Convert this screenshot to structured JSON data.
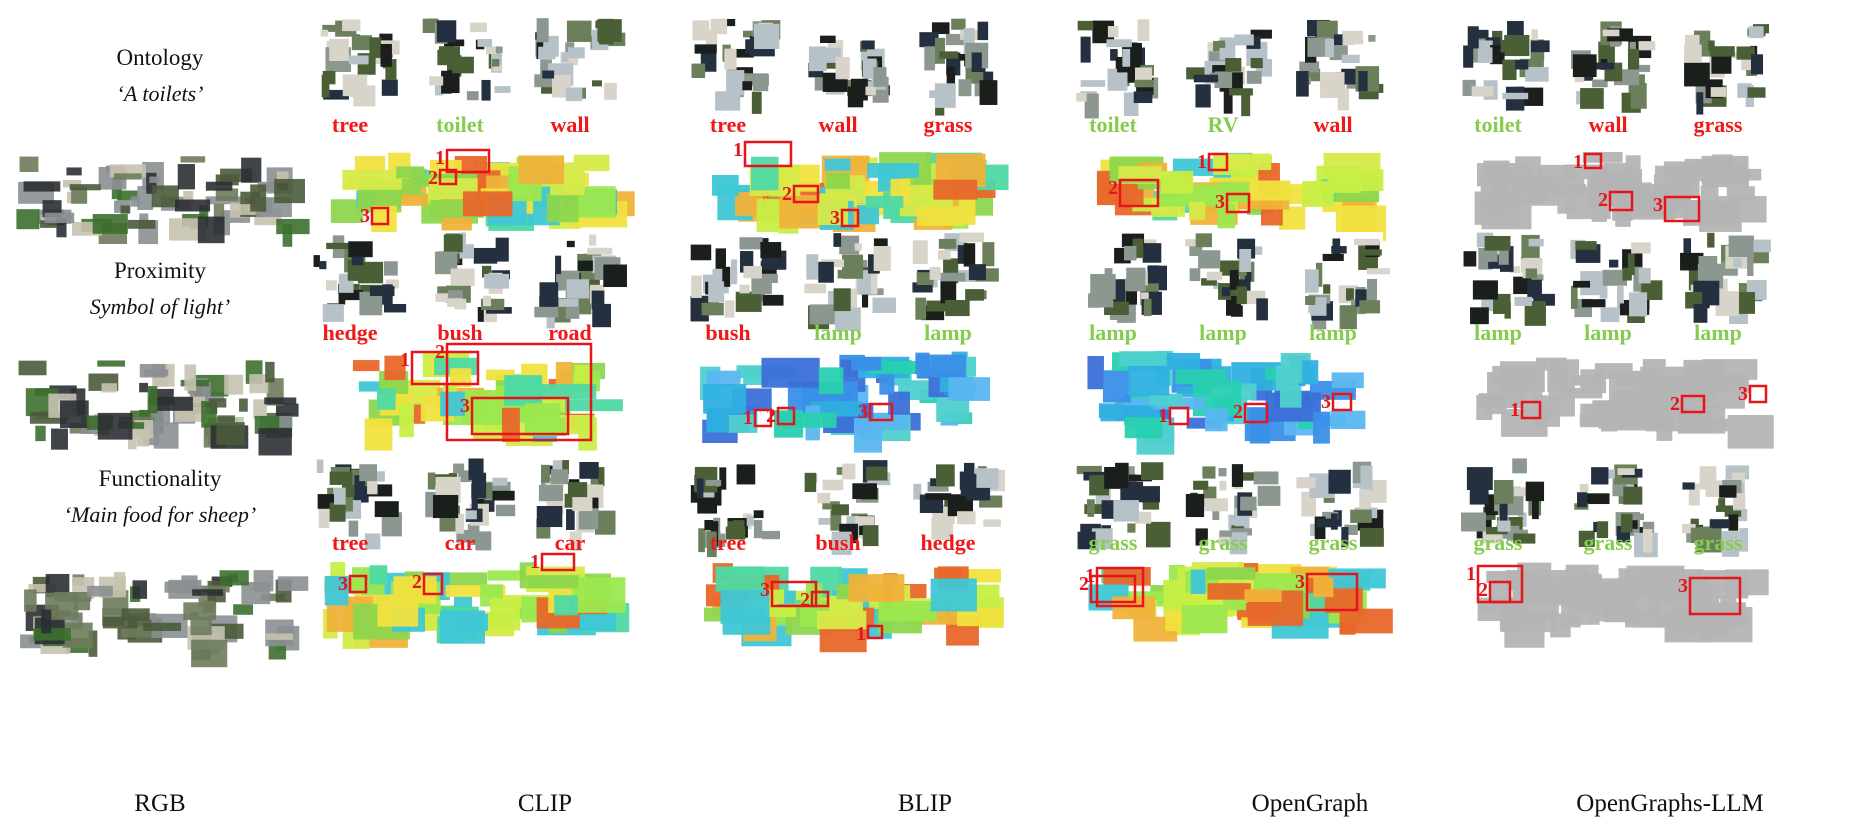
{
  "rows": [
    {
      "query_type": "Ontology",
      "query_text": "‘A toilets’",
      "methods": [
        {
          "labels": [
            {
              "text": "tree",
              "correct": false
            },
            {
              "text": "toilet",
              "correct": true
            },
            {
              "text": "wall",
              "correct": false
            }
          ]
        },
        {
          "labels": [
            {
              "text": "tree",
              "correct": false
            },
            {
              "text": "wall",
              "correct": false
            },
            {
              "text": "grass",
              "correct": false
            }
          ]
        },
        {
          "labels": [
            {
              "text": "toilet",
              "correct": true
            },
            {
              "text": "RV",
              "correct": true
            },
            {
              "text": "wall",
              "correct": false
            }
          ]
        },
        {
          "labels": [
            {
              "text": "toilet",
              "correct": true
            },
            {
              "text": "wall",
              "correct": false
            },
            {
              "text": "grass",
              "correct": false
            }
          ]
        }
      ]
    },
    {
      "query_type": "Proximity",
      "query_text": "Symbol of light’",
      "methods": [
        {
          "labels": [
            {
              "text": "hedge",
              "correct": false
            },
            {
              "text": "bush",
              "correct": false
            },
            {
              "text": "road",
              "correct": false
            }
          ]
        },
        {
          "labels": [
            {
              "text": "bush",
              "correct": false
            },
            {
              "text": "lamp",
              "correct": true
            },
            {
              "text": "lamp",
              "correct": true
            }
          ]
        },
        {
          "labels": [
            {
              "text": "lamp",
              "correct": true
            },
            {
              "text": "lamp",
              "correct": true
            },
            {
              "text": "lamp",
              "correct": true
            }
          ]
        },
        {
          "labels": [
            {
              "text": "lamp",
              "correct": true
            },
            {
              "text": "lamp",
              "correct": true
            },
            {
              "text": "lamp",
              "correct": true
            }
          ]
        }
      ]
    },
    {
      "query_type": "Functionality",
      "query_text": "‘Main food for sheep’",
      "methods": [
        {
          "labels": [
            {
              "text": "tree",
              "correct": false
            },
            {
              "text": "car",
              "correct": false
            },
            {
              "text": "car",
              "correct": false
            }
          ]
        },
        {
          "labels": [
            {
              "text": "tree",
              "correct": false
            },
            {
              "text": "bush",
              "correct": false
            },
            {
              "text": "hedge",
              "correct": false
            }
          ]
        },
        {
          "labels": [
            {
              "text": "grass",
              "correct": true
            },
            {
              "text": "grass",
              "correct": true
            },
            {
              "text": "grass",
              "correct": true
            }
          ]
        },
        {
          "labels": [
            {
              "text": "grass",
              "correct": true
            },
            {
              "text": "grass",
              "correct": true
            },
            {
              "text": "grass",
              "correct": true
            }
          ]
        }
      ]
    }
  ],
  "columns": [
    "RGB",
    "CLIP",
    "BLIP",
    "OpenGraph",
    "OpenGraphs-LLM"
  ],
  "rank_numbers": [
    "1",
    "2",
    "3"
  ],
  "colors": {
    "wrong": "#f01818",
    "correct": "#86cc4e",
    "box": "#e8141c",
    "highlight_base": "#b4b4b4"
  }
}
